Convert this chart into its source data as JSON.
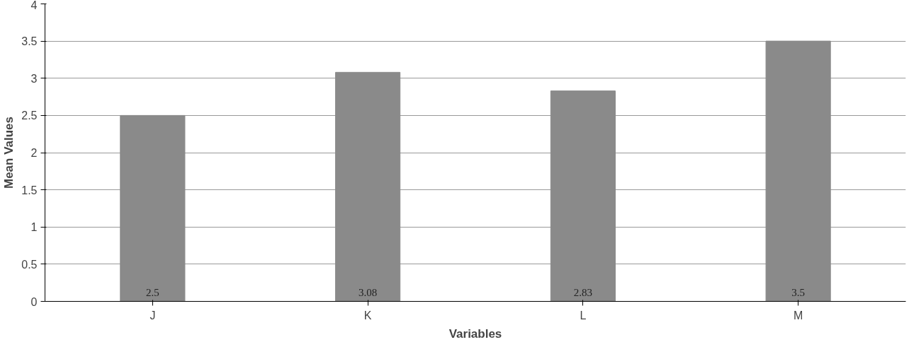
{
  "chart_data": {
    "type": "bar",
    "xlabel": "Variables",
    "ylabel": "Mean Values",
    "categories": [
      "J",
      "K",
      "L",
      "M"
    ],
    "values": [
      2.5,
      3.08,
      2.83,
      3.5
    ],
    "color": "#8a8a8a",
    "ylim": [
      0,
      4
    ],
    "yticks": [
      0,
      0.5,
      1,
      1.5,
      2,
      2.5,
      3,
      3.5,
      4
    ],
    "grid": "y",
    "data_labels": true
  }
}
